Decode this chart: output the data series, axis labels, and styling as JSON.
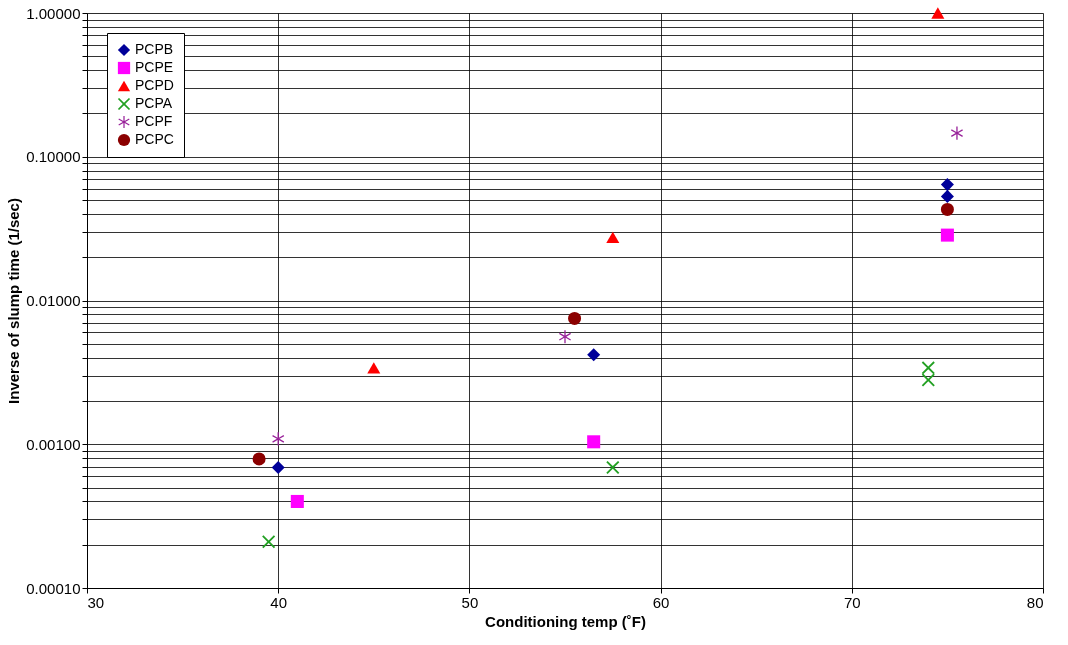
{
  "chart_data": {
    "type": "scatter",
    "xlabel": "Conditioning temp (˚F)",
    "ylabel": "Inverse of slump time (1/sec)",
    "log": "y",
    "grid": true,
    "legend": "top left",
    "xlim": [
      30,
      80
    ],
    "xticks": [
      30,
      40,
      50,
      60,
      70,
      80
    ],
    "ylim": [
      0.0001,
      1
    ],
    "yticks": [
      {
        "value": 0.0001,
        "label": "0.00010"
      },
      {
        "value": 0.0002,
        "label": null
      },
      {
        "value": 0.0003,
        "label": null
      },
      {
        "value": 0.0004,
        "label": null
      },
      {
        "value": 0.0005,
        "label": null
      },
      {
        "value": 0.0006,
        "label": null
      },
      {
        "value": 0.0007,
        "label": null
      },
      {
        "value": 0.0008,
        "label": null
      },
      {
        "value": 0.0009,
        "label": null
      },
      {
        "value": 0.001,
        "label": "0.00100"
      },
      {
        "value": 0.002,
        "label": null
      },
      {
        "value": 0.003,
        "label": null
      },
      {
        "value": 0.004,
        "label": null
      },
      {
        "value": 0.005,
        "label": null
      },
      {
        "value": 0.006,
        "label": null
      },
      {
        "value": 0.007,
        "label": null
      },
      {
        "value": 0.008,
        "label": null
      },
      {
        "value": 0.009,
        "label": null
      },
      {
        "value": 0.01,
        "label": "0.01000"
      },
      {
        "value": 0.02,
        "label": null
      },
      {
        "value": 0.03,
        "label": null
      },
      {
        "value": 0.04,
        "label": null
      },
      {
        "value": 0.05,
        "label": null
      },
      {
        "value": 0.06,
        "label": null
      },
      {
        "value": 0.07,
        "label": null
      },
      {
        "value": 0.08,
        "label": null
      },
      {
        "value": 0.09,
        "label": null
      },
      {
        "value": 0.1,
        "label": "0.10000"
      },
      {
        "value": 0.2,
        "label": null
      },
      {
        "value": 0.3,
        "label": null
      },
      {
        "value": 0.4,
        "label": null
      },
      {
        "value": 0.5,
        "label": null
      },
      {
        "value": 0.6,
        "label": null
      },
      {
        "value": 0.7,
        "label": null
      },
      {
        "value": 0.8,
        "label": null
      },
      {
        "value": 0.9,
        "label": null
      },
      {
        "value": 1,
        "label": "1.00000"
      }
    ],
    "series": [
      {
        "name": "PCPB",
        "color": "#000099",
        "marker": "diamond",
        "x": [
          40,
          56.5,
          75,
          75
        ],
        "values": [
          0.00069,
          0.0042,
          0.064,
          0.053
        ]
      },
      {
        "name": "PCPE",
        "color": "#ff00ff",
        "marker": "square",
        "x": [
          41,
          56.5,
          75
        ],
        "values": [
          0.0004,
          0.00104,
          0.0285
        ]
      },
      {
        "name": "PCPD",
        "color": "#ff0000",
        "marker": "triangle",
        "x": [
          45,
          57.5,
          74.5
        ],
        "values": [
          0.0034,
          0.0275,
          1.0
        ]
      },
      {
        "name": "PCPA",
        "color": "#22a022",
        "marker": "cross",
        "x": [
          39.5,
          57.5,
          74,
          74
        ],
        "values": [
          0.00021,
          0.00069,
          0.0034,
          0.0028
        ]
      },
      {
        "name": "PCPF",
        "color": "#99229a",
        "marker": "star",
        "x": [
          40,
          55,
          75.5
        ],
        "values": [
          0.00109,
          0.0056,
          0.146
        ]
      },
      {
        "name": "PCPC",
        "color": "#8b0000",
        "marker": "circle",
        "x": [
          39,
          55.5,
          75
        ],
        "values": [
          0.00079,
          0.0075,
          0.043
        ]
      }
    ]
  }
}
